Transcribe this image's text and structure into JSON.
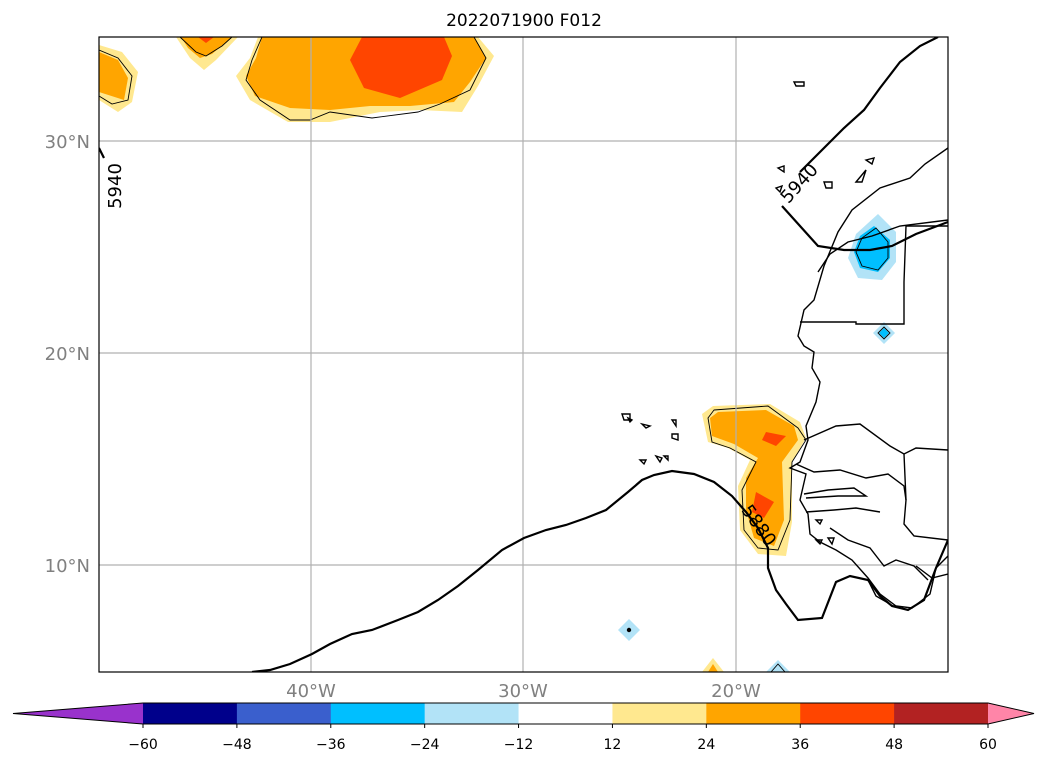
{
  "title": "2022071900 F012",
  "map": {
    "lat_labels": [
      "30°N",
      "20°N",
      "10°N"
    ],
    "lon_labels": [
      "40°W",
      "30°W",
      "20°W"
    ],
    "contour_labels": [
      "5940",
      "5940",
      "5880"
    ],
    "grid": true
  },
  "colorbar": {
    "ticks": [
      "−60",
      "−48",
      "−36",
      "−24",
      "−12",
      "12",
      "24",
      "36",
      "48",
      "60"
    ],
    "colors": [
      "#9932cc",
      "#00008b",
      "#3a5fcd",
      "#00bfff",
      "#b2e3f7",
      "#ffffff",
      "#ffe88f",
      "#ffa500",
      "#ff4500",
      "#b22222",
      "#ff85a8"
    ],
    "extend": "both"
  },
  "colors": {
    "grid": "#b0b0b0",
    "coast": "#000000",
    "label_gray": "#808080"
  }
}
